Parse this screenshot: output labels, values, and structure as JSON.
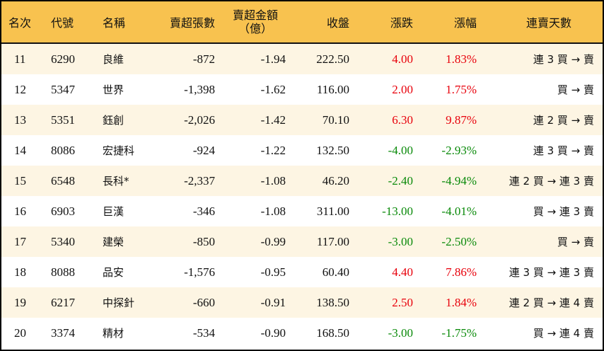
{
  "colors": {
    "header_bg": "#f8c24f",
    "odd_row": "#fdf5e3",
    "up": "#e8000b",
    "down": "#0a8a0a"
  },
  "headers": [
    "名次",
    "代號",
    "名稱",
    "賣超張數",
    "賣超金額\n（億）",
    "收盤",
    "漲跌",
    "漲幅",
    "連賣天數"
  ],
  "rows": [
    {
      "rank": "11",
      "code": "6290",
      "name": "良維",
      "shares": "-872",
      "amount": "-1.94",
      "close": "222.50",
      "change": "4.00",
      "pct": "1.83%",
      "streak": "連 3 買 → 賣",
      "dir": "up"
    },
    {
      "rank": "12",
      "code": "5347",
      "name": "世界",
      "shares": "-1,398",
      "amount": "-1.62",
      "close": "116.00",
      "change": "2.00",
      "pct": "1.75%",
      "streak": "買 → 賣",
      "dir": "up"
    },
    {
      "rank": "13",
      "code": "5351",
      "name": "鈺創",
      "shares": "-2,026",
      "amount": "-1.42",
      "close": "70.10",
      "change": "6.30",
      "pct": "9.87%",
      "streak": "連 2 買 → 賣",
      "dir": "up"
    },
    {
      "rank": "14",
      "code": "8086",
      "name": "宏捷科",
      "shares": "-924",
      "amount": "-1.22",
      "close": "132.50",
      "change": "-4.00",
      "pct": "-2.93%",
      "streak": "連 3 買 → 賣",
      "dir": "down"
    },
    {
      "rank": "15",
      "code": "6548",
      "name": "長科*",
      "shares": "-2,337",
      "amount": "-1.08",
      "close": "46.20",
      "change": "-2.40",
      "pct": "-4.94%",
      "streak": "連 2 買 → 連 3 賣",
      "dir": "down"
    },
    {
      "rank": "16",
      "code": "6903",
      "name": "巨漢",
      "shares": "-346",
      "amount": "-1.08",
      "close": "311.00",
      "change": "-13.00",
      "pct": "-4.01%",
      "streak": "買 → 連 3 賣",
      "dir": "down"
    },
    {
      "rank": "17",
      "code": "5340",
      "name": "建榮",
      "shares": "-850",
      "amount": "-0.99",
      "close": "117.00",
      "change": "-3.00",
      "pct": "-2.50%",
      "streak": "買 → 賣",
      "dir": "down"
    },
    {
      "rank": "18",
      "code": "8088",
      "name": "品安",
      "shares": "-1,576",
      "amount": "-0.95",
      "close": "60.40",
      "change": "4.40",
      "pct": "7.86%",
      "streak": "連 3 買 → 連 3 賣",
      "dir": "up"
    },
    {
      "rank": "19",
      "code": "6217",
      "name": "中探針",
      "shares": "-660",
      "amount": "-0.91",
      "close": "138.50",
      "change": "2.50",
      "pct": "1.84%",
      "streak": "連 2 買 → 連 4 賣",
      "dir": "up"
    },
    {
      "rank": "20",
      "code": "3374",
      "name": "精材",
      "shares": "-534",
      "amount": "-0.90",
      "close": "168.50",
      "change": "-3.00",
      "pct": "-1.75%",
      "streak": "買 → 連 4 賣",
      "dir": "down"
    }
  ]
}
